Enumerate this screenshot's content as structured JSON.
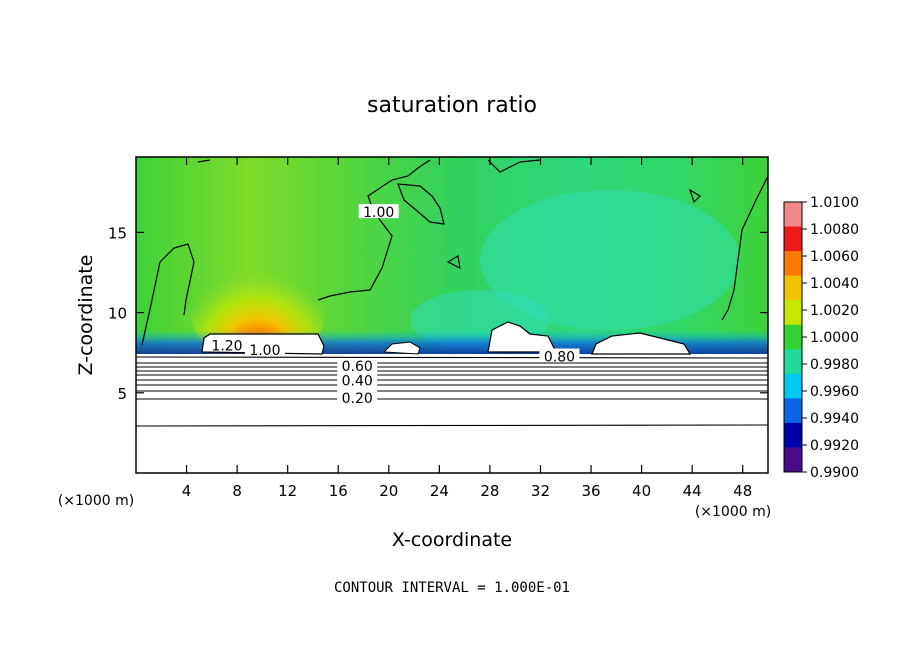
{
  "chart_data": {
    "type": "heatmap",
    "title": "saturation ratio",
    "xlabel": "X-coordinate",
    "ylabel": "Z-coordinate",
    "x_unit": "(×1000 m)",
    "y_unit": "(×1000 m)",
    "xlim": [
      0,
      50
    ],
    "ylim": [
      0,
      19.7
    ],
    "x_ticks": [
      4,
      8,
      12,
      16,
      20,
      24,
      28,
      32,
      36,
      40,
      44,
      48
    ],
    "y_ticks": [
      5,
      10,
      15
    ],
    "footer": "CONTOUR INTERVAL = 1.000E-01",
    "colorbar": {
      "ticks": [
        "1.0100",
        "1.0080",
        "1.0060",
        "1.0040",
        "1.0020",
        "1.0000",
        "0.9980",
        "0.9960",
        "0.9940",
        "0.9920",
        "0.9900"
      ],
      "colors": [
        "#f2888a",
        "#ee1a1a",
        "#ff7a00",
        "#f2c400",
        "#c6e600",
        "#33d233",
        "#22d89a",
        "#00c8f0",
        "#0a64e6",
        "#0000aa",
        "#4a0a8a"
      ]
    },
    "contour_labels": [
      {
        "text": "1.20",
        "x": 7.2,
        "z": 7.9
      },
      {
        "text": "1.00",
        "x": 10.2,
        "z": 7.6
      },
      {
        "text": "1.00",
        "x": 19.2,
        "z": 16.2
      },
      {
        "text": "0.80",
        "x": 33.5,
        "z": 7.2
      },
      {
        "text": "0.60",
        "x": 17.5,
        "z": 6.6
      },
      {
        "text": "0.40",
        "x": 17.5,
        "z": 5.7
      },
      {
        "text": "0.20",
        "x": 17.5,
        "z": 4.6
      }
    ],
    "contour_levels_below": [
      {
        "level": "0.20",
        "z": 4.6
      },
      {
        "level": "0.40",
        "z": 5.7
      },
      {
        "level": "0.60",
        "z": 6.6
      }
    ]
  }
}
